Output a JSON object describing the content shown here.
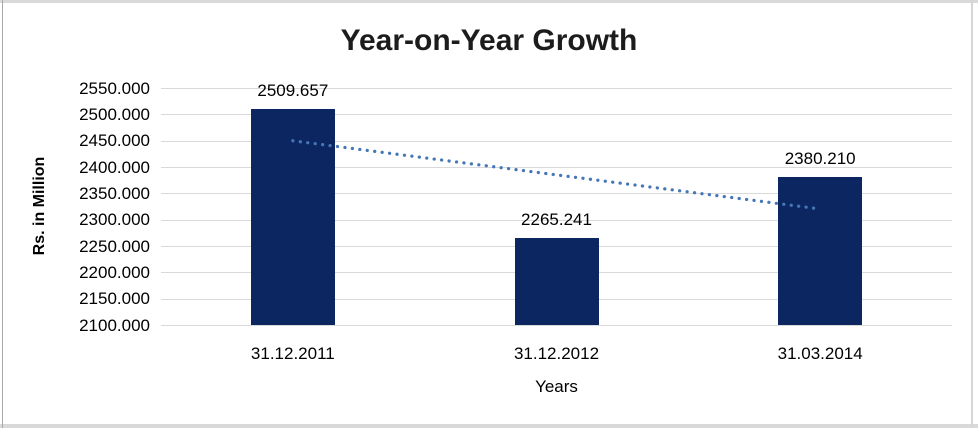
{
  "chart_data": {
    "type": "bar",
    "title": "Year-on-Year Growth",
    "xlabel": "Years",
    "ylabel": "Rs. in Million",
    "categories": [
      "31.12.2011",
      "31.12.2012",
      "31.03.2014"
    ],
    "values": [
      2509.657,
      2265.241,
      2380.21
    ],
    "data_labels": [
      "2509.657",
      "2265.241",
      "2380.210"
    ],
    "ylim": [
      2100,
      2550
    ],
    "ytick_step": 50,
    "ytick_labels": [
      "2550.000",
      "2500.000",
      "2450.000",
      "2400.000",
      "2350.000",
      "2300.000",
      "2250.000",
      "2200.000",
      "2150.000",
      "2100.000"
    ],
    "grid": true,
    "legend": "none",
    "bar_color": "#0B2660",
    "trendline": {
      "style": "dotted",
      "color": "#4577B7",
      "start_value": 2449.8,
      "end_value": 2320.3
    }
  }
}
